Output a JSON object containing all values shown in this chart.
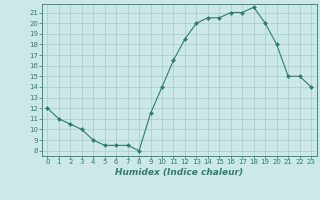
{
  "x": [
    0,
    1,
    2,
    3,
    4,
    5,
    6,
    7,
    8,
    9,
    10,
    11,
    12,
    13,
    14,
    15,
    16,
    17,
    18,
    19,
    20,
    21,
    22,
    23
  ],
  "y": [
    12,
    11,
    10.5,
    10,
    9,
    8.5,
    8.5,
    8.5,
    8,
    11.5,
    14,
    16.5,
    18.5,
    20,
    20.5,
    20.5,
    21,
    21,
    21.5,
    20,
    18,
    15,
    15,
    14
  ],
  "line_color": "#2e7d6e",
  "marker_color": "#2e7d6e",
  "bg_color": "#cce8e8",
  "grid_color": "#aacccc",
  "xlabel": "Humidex (Indice chaleur)",
  "xlim": [
    -0.5,
    23.5
  ],
  "ylim": [
    7.5,
    21.8
  ],
  "yticks": [
    8,
    9,
    10,
    11,
    12,
    13,
    14,
    15,
    16,
    17,
    18,
    19,
    20,
    21
  ],
  "xticks": [
    0,
    1,
    2,
    3,
    4,
    5,
    6,
    7,
    8,
    9,
    10,
    11,
    12,
    13,
    14,
    15,
    16,
    17,
    18,
    19,
    20,
    21,
    22,
    23
  ],
  "font_color": "#2e7d6e",
  "tick_fontsize": 5.0,
  "label_fontsize": 6.5
}
